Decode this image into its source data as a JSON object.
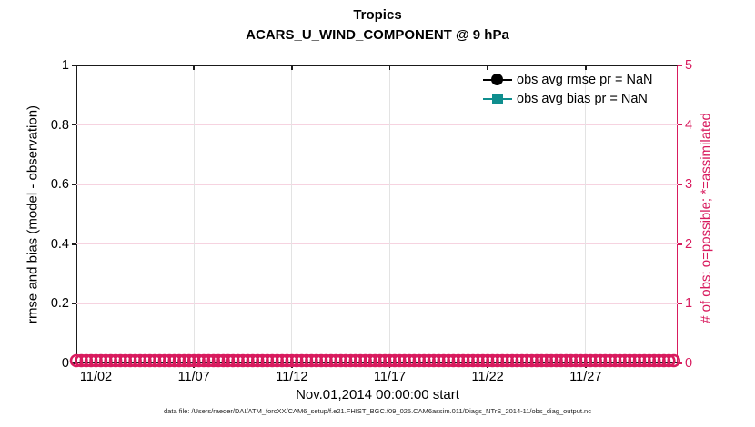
{
  "header": {
    "title": "Tropics",
    "subtitle": "ACARS_U_WIND_COMPONENT @ 9 hPa"
  },
  "colors": {
    "accent_pink": "#d81b5e",
    "grid_pink": "#f6d3e0",
    "grid_gray": "#e3e3e3",
    "teal": "#0f8e8e",
    "black": "#000000"
  },
  "legend": {
    "items": [
      {
        "label": "obs avg rmse pr = NaN",
        "marker": "circle",
        "color": "#000000"
      },
      {
        "label": "obs avg bias pr = NaN",
        "marker": "square",
        "color": "#0f8e8e"
      }
    ]
  },
  "footer": {
    "caption": "data file: /Users/raeder/DAI/ATM_forcXX/CAM6_setup/f.e21.FHIST_BGC.f09_025.CAM6assim.011/Diags_NTrS_2014-11/obs_diag_output.nc"
  },
  "chart_data": {
    "type": "line",
    "title": "Tropics",
    "subtitle": "ACARS_U_WIND_COMPONENT @ 9 hPa",
    "xlabel": "Nov.01,2014 00:00:00 start",
    "ylabel_left": "rmse and bias (model - observation)",
    "ylabel_right": "# of obs: o=possible; *=assimilated",
    "x_tick_labels": [
      "11/02",
      "11/07",
      "11/12",
      "11/17",
      "11/22",
      "11/27"
    ],
    "x_tick_days": [
      1,
      6,
      11,
      16,
      21,
      26
    ],
    "x_range_days": [
      0,
      30.7
    ],
    "ylim_left": [
      0,
      1
    ],
    "yticks_left_labels": [
      "0",
      "0.2",
      "0.4",
      "0.6",
      "0.8",
      "1"
    ],
    "yticks_left": [
      0,
      0.2,
      0.4,
      0.6,
      0.8,
      1
    ],
    "ylim_right": [
      0,
      5
    ],
    "yticks_right_labels": [
      "0",
      "1",
      "2",
      "3",
      "4",
      "5"
    ],
    "yticks_right": [
      0,
      1,
      2,
      3,
      4,
      5
    ],
    "grid": true,
    "legend_position": "top-right-inside",
    "series": [
      {
        "name": "obs avg rmse pr = NaN",
        "axis": "left",
        "color": "#000000",
        "marker": "circle",
        "values": "NaN"
      },
      {
        "name": "obs avg bias pr = NaN",
        "axis": "left",
        "color": "#0f8e8e",
        "marker": "square",
        "values": "NaN"
      },
      {
        "name": "# of obs possible (o)",
        "axis": "right",
        "color": "#d81b5e",
        "marker": "o",
        "constant_value": 0,
        "x_start_day": 0,
        "x_end_day": 30.7,
        "x_step_days": 0.25
      },
      {
        "name": "# of obs assimilated (*)",
        "axis": "right",
        "color": "#d81b5e",
        "marker": "*",
        "constant_value": 0,
        "x_start_day": 0,
        "x_end_day": 30.7,
        "x_step_days": 0.25
      }
    ]
  }
}
